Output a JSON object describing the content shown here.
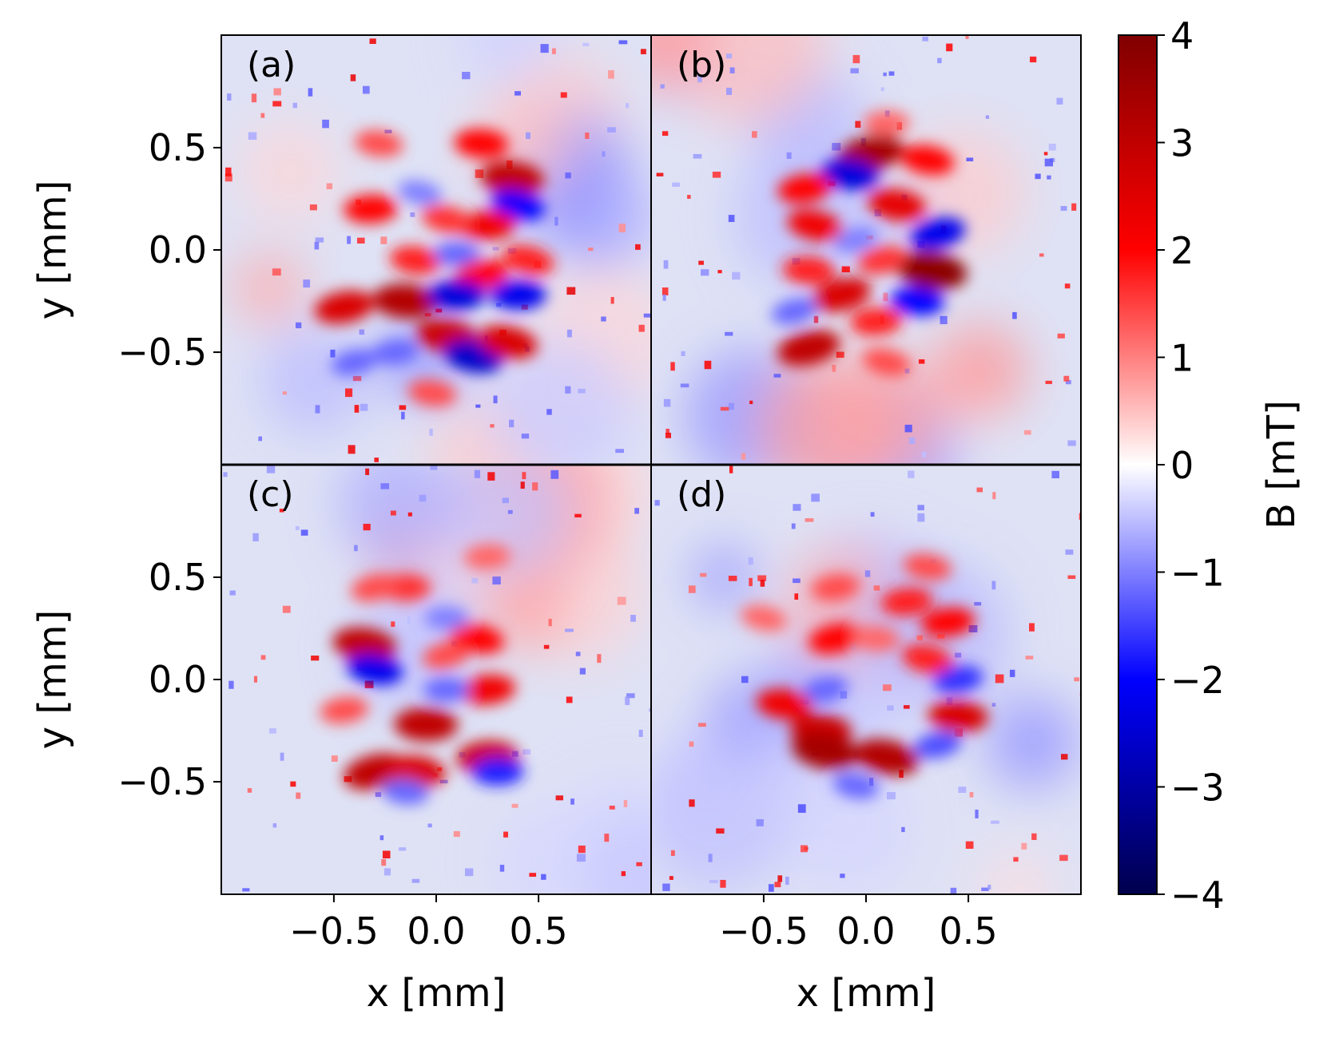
{
  "chart_data": {
    "type": "heatmap",
    "xlabel": "x [mm]",
    "ylabel": "y [mm]",
    "xlim": [
      -1.05,
      1.05
    ],
    "ylim": [
      -1.05,
      1.05
    ],
    "xticks": [
      -0.5,
      0.0,
      0.5
    ],
    "xtick_labels": [
      "−0.5",
      "0.0",
      "0.5"
    ],
    "yticks": [
      0.5,
      0.0,
      -0.5
    ],
    "ytick_labels": [
      "0.5",
      "0.0",
      "−0.5"
    ],
    "panels": [
      {
        "label": "(a)",
        "center": [
          0.0,
          0.0
        ],
        "features": [
          {
            "x": 0.37,
            "y": 0.35,
            "value": 3.0
          },
          {
            "x": 0.4,
            "y": 0.22,
            "value": -2.0
          },
          {
            "x": 0.22,
            "y": 0.52,
            "value": 2.0
          },
          {
            "x": 0.25,
            "y": 0.12,
            "value": 2.2
          },
          {
            "x": -0.32,
            "y": 0.2,
            "value": 2.0
          },
          {
            "x": 0.05,
            "y": 0.15,
            "value": 1.6
          },
          {
            "x": -0.08,
            "y": 0.28,
            "value": -1.0
          },
          {
            "x": -0.1,
            "y": -0.05,
            "value": 1.8
          },
          {
            "x": 0.1,
            "y": -0.02,
            "value": -1.2
          },
          {
            "x": 0.22,
            "y": -0.12,
            "value": 2.0
          },
          {
            "x": 0.45,
            "y": -0.05,
            "value": 1.8
          },
          {
            "x": -0.15,
            "y": -0.25,
            "value": 3.2
          },
          {
            "x": 0.1,
            "y": -0.22,
            "value": -2.4
          },
          {
            "x": 0.4,
            "y": -0.22,
            "value": -2.2
          },
          {
            "x": -0.45,
            "y": -0.28,
            "value": 2.6
          },
          {
            "x": 0.05,
            "y": -0.42,
            "value": 2.8
          },
          {
            "x": 0.18,
            "y": -0.52,
            "value": -2.6
          },
          {
            "x": 0.35,
            "y": -0.45,
            "value": 2.6
          },
          {
            "x": -0.2,
            "y": -0.5,
            "value": -1.2
          },
          {
            "x": -0.02,
            "y": -0.7,
            "value": 1.4
          },
          {
            "x": -0.28,
            "y": 0.52,
            "value": 1.4
          },
          {
            "x": -0.4,
            "y": -0.55,
            "value": -1.2
          }
        ]
      },
      {
        "label": "(b)",
        "center": [
          0.0,
          0.0
        ],
        "features": [
          {
            "x": 0.02,
            "y": 0.47,
            "value": 3.4
          },
          {
            "x": -0.08,
            "y": 0.37,
            "value": -2.4
          },
          {
            "x": 0.3,
            "y": 0.44,
            "value": 2.0
          },
          {
            "x": -0.3,
            "y": 0.3,
            "value": 2.0
          },
          {
            "x": -0.25,
            "y": 0.12,
            "value": 2.2
          },
          {
            "x": 0.15,
            "y": 0.22,
            "value": 2.4
          },
          {
            "x": 0.35,
            "y": 0.08,
            "value": -2.2
          },
          {
            "x": 0.32,
            "y": -0.1,
            "value": 3.8
          },
          {
            "x": 0.08,
            "y": -0.05,
            "value": 1.6
          },
          {
            "x": -0.05,
            "y": 0.05,
            "value": -1.0
          },
          {
            "x": -0.28,
            "y": -0.1,
            "value": 1.8
          },
          {
            "x": -0.12,
            "y": -0.22,
            "value": 2.6
          },
          {
            "x": 0.25,
            "y": -0.25,
            "value": -2.0
          },
          {
            "x": 0.05,
            "y": -0.35,
            "value": 1.8
          },
          {
            "x": -0.28,
            "y": -0.48,
            "value": 3.0
          },
          {
            "x": 0.1,
            "y": -0.55,
            "value": 1.4
          },
          {
            "x": -0.35,
            "y": -0.3,
            "value": -1.2
          },
          {
            "x": 0.1,
            "y": 0.62,
            "value": 1.2
          }
        ]
      },
      {
        "label": "(c)",
        "center": [
          0.0,
          0.0
        ],
        "features": [
          {
            "x": -0.35,
            "y": 0.17,
            "value": 3.0
          },
          {
            "x": -0.3,
            "y": 0.05,
            "value": -2.2
          },
          {
            "x": -0.15,
            "y": 0.45,
            "value": 1.6
          },
          {
            "x": -0.3,
            "y": 0.45,
            "value": 1.4
          },
          {
            "x": 0.05,
            "y": 0.12,
            "value": 1.4
          },
          {
            "x": 0.2,
            "y": 0.2,
            "value": 2.0
          },
          {
            "x": 0.25,
            "y": -0.05,
            "value": 2.2
          },
          {
            "x": 0.05,
            "y": -0.05,
            "value": -1.2
          },
          {
            "x": -0.05,
            "y": -0.22,
            "value": 3.0
          },
          {
            "x": -0.3,
            "y": -0.45,
            "value": 3.0
          },
          {
            "x": -0.1,
            "y": -0.45,
            "value": 2.6
          },
          {
            "x": 0.25,
            "y": -0.38,
            "value": 2.8
          },
          {
            "x": 0.3,
            "y": -0.45,
            "value": -1.8
          },
          {
            "x": -0.45,
            "y": -0.15,
            "value": 1.4
          },
          {
            "x": -0.15,
            "y": -0.55,
            "value": -1.2
          },
          {
            "x": 0.05,
            "y": 0.3,
            "value": -1.0
          },
          {
            "x": 0.25,
            "y": 0.6,
            "value": 1.2
          }
        ]
      },
      {
        "label": "(d)",
        "center": [
          0.0,
          0.0
        ],
        "features": [
          {
            "x": -0.15,
            "y": 0.45,
            "value": 1.4
          },
          {
            "x": 0.2,
            "y": 0.38,
            "value": 1.8
          },
          {
            "x": 0.4,
            "y": 0.28,
            "value": 2.0
          },
          {
            "x": -0.15,
            "y": 0.2,
            "value": 2.0
          },
          {
            "x": 0.05,
            "y": 0.2,
            "value": 1.2
          },
          {
            "x": 0.3,
            "y": 0.1,
            "value": 1.8
          },
          {
            "x": 0.45,
            "y": 0.0,
            "value": -1.6
          },
          {
            "x": 0.45,
            "y": -0.18,
            "value": 2.6
          },
          {
            "x": -0.2,
            "y": -0.05,
            "value": -1.2
          },
          {
            "x": -0.4,
            "y": -0.12,
            "value": 2.2
          },
          {
            "x": -0.22,
            "y": -0.25,
            "value": 2.8
          },
          {
            "x": -0.2,
            "y": -0.35,
            "value": 3.4
          },
          {
            "x": 0.1,
            "y": -0.38,
            "value": 3.2
          },
          {
            "x": 0.35,
            "y": -0.32,
            "value": -1.4
          },
          {
            "x": -0.05,
            "y": -0.52,
            "value": -1.2
          },
          {
            "x": 0.3,
            "y": 0.55,
            "value": 1.4
          },
          {
            "x": -0.5,
            "y": 0.3,
            "value": 1.2
          }
        ]
      }
    ],
    "colorbar": {
      "label": "B [mT]",
      "range": [
        -4,
        4
      ],
      "ticks": [
        4,
        3,
        2,
        1,
        0,
        -1,
        -2,
        -3,
        -4
      ],
      "tick_labels": [
        "4",
        "3",
        "2",
        "1",
        "0",
        "−1",
        "−2",
        "−3",
        "−4"
      ],
      "colormap": "seismic",
      "colors": [
        "#00004c",
        "#0000ff",
        "#ffffff",
        "#ff0000",
        "#800000"
      ]
    }
  }
}
